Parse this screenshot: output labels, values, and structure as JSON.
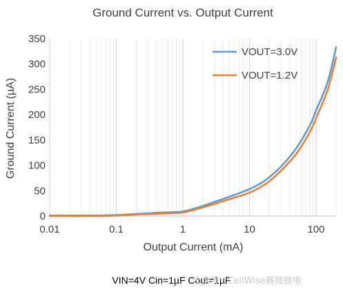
{
  "chart_data": {
    "type": "line",
    "title": "Ground Current vs. Output Current",
    "xlabel": "Output Current (mA)",
    "ylabel": "Ground Current (µA)",
    "x_scale": "log",
    "xlim": [
      0.01,
      200
    ],
    "ylim": [
      0,
      350
    ],
    "x_ticks": [
      0.01,
      0.1,
      1,
      10,
      100
    ],
    "x_tick_labels": [
      "0.01",
      "0.1",
      "1",
      "10",
      "100"
    ],
    "y_ticks": [
      0,
      50,
      100,
      150,
      200,
      250,
      300,
      350
    ],
    "y_tick_labels": [
      "0",
      "50",
      "100",
      "150",
      "200",
      "250",
      "300",
      "350"
    ],
    "grid": "vertical minor and major log gridlines",
    "legend": "top-right",
    "series": [
      {
        "name": "VOUT=3.0V",
        "color": "#5b9bd5",
        "x": [
          0.01,
          0.05,
          0.1,
          0.2,
          0.5,
          1,
          2,
          3,
          5,
          10,
          15,
          20,
          30,
          50,
          80,
          100,
          150,
          200
        ],
        "y": [
          1,
          1,
          2,
          4,
          7,
          9,
          20,
          28,
          38,
          53,
          65,
          77,
          98,
          133,
          178,
          208,
          265,
          333
        ]
      },
      {
        "name": "VOUT=1.2V",
        "color": "#ed7d31",
        "x": [
          0.01,
          0.05,
          0.1,
          0.2,
          0.5,
          1,
          2,
          3,
          5,
          10,
          15,
          20,
          30,
          50,
          80,
          100,
          150,
          200
        ],
        "y": [
          0,
          0,
          1,
          3,
          5,
          7,
          17,
          24,
          33,
          46,
          58,
          69,
          90,
          122,
          165,
          193,
          250,
          313
        ]
      }
    ]
  },
  "footnote": "VIN=4V  Cin=1µF  Cout=1µF",
  "watermark": "公众号 · CellWise赛微微电"
}
